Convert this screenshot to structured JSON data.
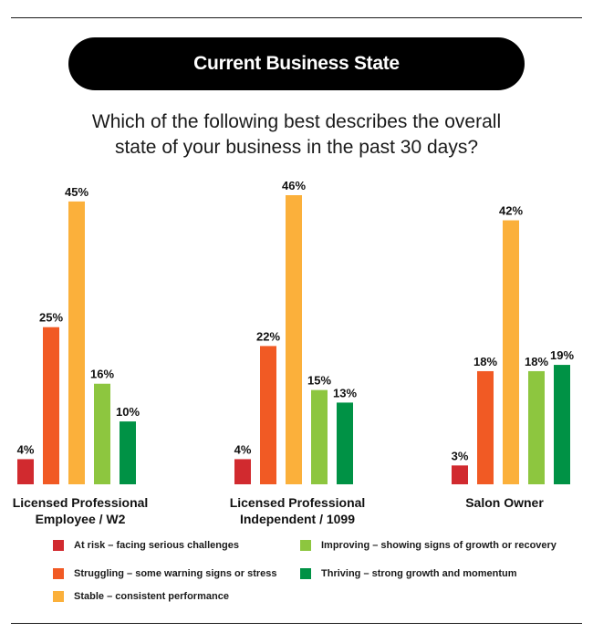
{
  "title": "Current Business State",
  "subtitle_lines": [
    "Which of the following best describes the overall",
    "state of your business in the past 30 days?"
  ],
  "colors": {
    "at_risk": "#d12a2f",
    "struggling": "#f15a24",
    "stable": "#fbb03b",
    "improving": "#8dc63f",
    "thriving": "#009245"
  },
  "chart_data": {
    "type": "bar",
    "categories": [
      [
        "Licensed Professional",
        "Employee / W2"
      ],
      [
        "Licensed Professional",
        "Independent / 1099"
      ],
      [
        "Salon Owner"
      ]
    ],
    "series": [
      {
        "name": "At risk – facing serious challenges",
        "color": "#d12a2f",
        "values": [
          4,
          4,
          3
        ]
      },
      {
        "name": "Struggling – some warning signs or stress",
        "color": "#f15a24",
        "values": [
          25,
          22,
          18
        ]
      },
      {
        "name": "Stable – consistent performance",
        "color": "#fbb03b",
        "values": [
          45,
          46,
          42
        ]
      },
      {
        "name": "Improving – showing signs of growth or recovery",
        "color": "#8dc63f",
        "values": [
          16,
          15,
          18
        ]
      },
      {
        "name": "Thriving – strong growth and momentum",
        "color": "#009245",
        "values": [
          10,
          13,
          19
        ]
      }
    ],
    "value_suffix": "%",
    "ylim": [
      0,
      46
    ],
    "grid": false,
    "legend_position": "bottom"
  }
}
